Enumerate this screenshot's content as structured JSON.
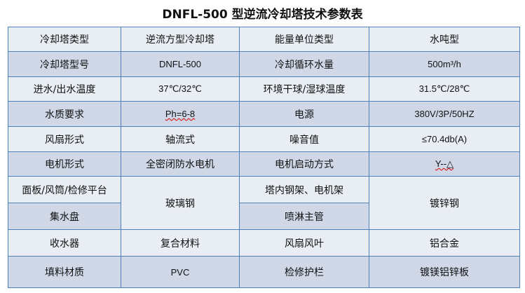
{
  "title": "DNFL-500 型逆流冷却塔技术参数表",
  "colors": {
    "border": "#4f81bd",
    "row_light": "#e9edf4",
    "row_dark": "#d0d8e8"
  },
  "rows": [
    [
      "冷却塔类型",
      "逆流方型冷却塔",
      "能量单位类型",
      "水吨型"
    ],
    [
      "冷却塔型号",
      "DNFL-500",
      "冷却循环水量",
      "500m³/h"
    ],
    [
      "进水/出水温度",
      "37℃/32℃",
      "环境干球/湿球温度",
      "31.5℃/28℃"
    ],
    [
      "水质要求",
      "Ph=6-8",
      "电源",
      "380V/3P/50HZ"
    ],
    [
      "风扇形式",
      "轴流式",
      "噪音值",
      "≤70.4db(A)"
    ],
    [
      "电机形式",
      "全密闭防水电机",
      "电机启动方式",
      "Y--△"
    ],
    [
      "面板/风筒/检修平台",
      "玻璃钢",
      "塔内钢架、电机架",
      "镀锌钢"
    ],
    [
      "集水盘",
      "喷淋主管"
    ],
    [
      "收水器",
      "复合材料",
      "风扇风叶",
      "铝合金"
    ],
    [
      "填料材质",
      "PVC",
      "检修护栏",
      "镀镁铝锌板"
    ]
  ]
}
